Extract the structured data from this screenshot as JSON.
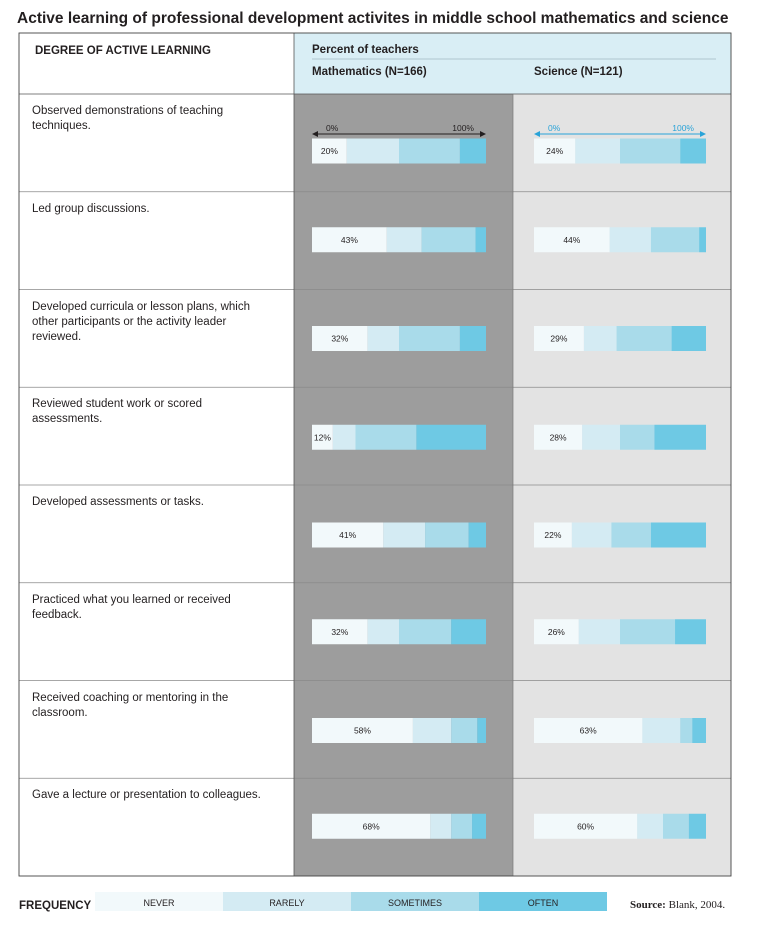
{
  "title": "Active learning of professional development activites in middle school mathematics and science",
  "header": {
    "degree": "DEGREE OF ACTIVE LEARNING",
    "percent": "Percent of teachers",
    "math": "Mathematics (N=166)",
    "science": "Science (N=121)"
  },
  "scale": {
    "min_label": "0%",
    "max_label": "100%"
  },
  "legend": {
    "label": "FREQUENCY",
    "items": [
      {
        "name": "NEVER",
        "color": "#f2f9fb"
      },
      {
        "name": "RARELY",
        "color": "#d4ebf3"
      },
      {
        "name": "SOMETIMES",
        "color": "#a9dbea"
      },
      {
        "name": "OFTEN",
        "color": "#6ec9e4"
      }
    ]
  },
  "source": {
    "label": "Source:",
    "text": "Blank, 2004."
  },
  "colors": {
    "header_bg": "#d9eef5",
    "math_panel": "#9d9d9d",
    "science_panel": "#e3e3e3",
    "science_arrow": "#29a3d8",
    "math_arrow": "#231f20"
  },
  "chart_data": {
    "type": "bar",
    "stacked": true,
    "orientation": "horizontal",
    "xlim": [
      0,
      100
    ],
    "series_names": [
      "NEVER",
      "RARELY",
      "SOMETIMES",
      "OFTEN"
    ],
    "categories": [
      "Observed demonstrations of teaching techniques.",
      "Led group discussions.",
      "Developed curricula or lesson plans, which other participants or the activity leader reviewed.",
      "Reviewed student work or scored assessments.",
      "Developed assessments or tasks.",
      "Practiced what you learned or received feedback.",
      "Received coaching or mentoring in the classroom.",
      "Gave a lecture or presentation to colleagues."
    ],
    "mathematics": [
      {
        "values": [
          20,
          30,
          35,
          15
        ],
        "label": "20%"
      },
      {
        "values": [
          43,
          20,
          31,
          6
        ],
        "label": "43%"
      },
      {
        "values": [
          32,
          18,
          35,
          15
        ],
        "label": "32%"
      },
      {
        "values": [
          12,
          13,
          35,
          40
        ],
        "label": "12%"
      },
      {
        "values": [
          41,
          24,
          25,
          10
        ],
        "label": "41%"
      },
      {
        "values": [
          32,
          18,
          30,
          20
        ],
        "label": "32%"
      },
      {
        "values": [
          58,
          22,
          15,
          5
        ],
        "label": "58%"
      },
      {
        "values": [
          68,
          12,
          12,
          8
        ],
        "label": "68%"
      }
    ],
    "science": [
      {
        "values": [
          24,
          26,
          35,
          15
        ],
        "label": "24%"
      },
      {
        "values": [
          44,
          24,
          28,
          4
        ],
        "label": "44%"
      },
      {
        "values": [
          29,
          19,
          32,
          20
        ],
        "label": "29%"
      },
      {
        "values": [
          28,
          22,
          20,
          30
        ],
        "label": "28%"
      },
      {
        "values": [
          22,
          23,
          23,
          32
        ],
        "label": "22%"
      },
      {
        "values": [
          26,
          24,
          32,
          18
        ],
        "label": "26%"
      },
      {
        "values": [
          63,
          22,
          7,
          8
        ],
        "label": "63%"
      },
      {
        "values": [
          60,
          15,
          15,
          10
        ],
        "label": "60%"
      }
    ]
  }
}
